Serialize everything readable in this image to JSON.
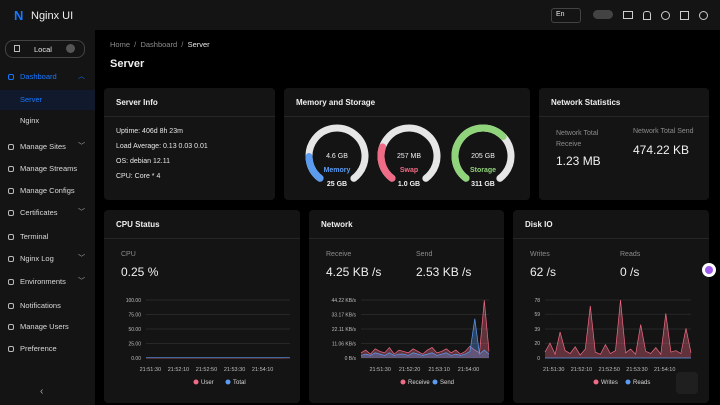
{
  "sidebar": {
    "brand": "Nginx UI",
    "node": "Local",
    "menu": [
      "Dashboard",
      "Server",
      "Nginx",
      "Manage Sites",
      "Manage Streams",
      "Manage Configs",
      "Certificates",
      "Terminal",
      "Nginx Log",
      "Environments",
      "Notifications",
      "Manage Users",
      "Preference"
    ]
  },
  "topbar": {
    "language": "En"
  },
  "breadcrumb": [
    "Home",
    "Dashboard",
    "Server"
  ],
  "page_title": "Server",
  "server_info": {
    "title": "Server Info",
    "lines": [
      "Uptime: 406d 8h 23m",
      "Load Average: 0.13 0.03 0.01",
      "OS: debian 12.11",
      "CPU: Core * 4"
    ]
  },
  "memory_storage": {
    "title": "Memory and Storage",
    "gauges": [
      {
        "name": "Memory",
        "used": "4.6 GB",
        "total": "25 GB",
        "percent": 18,
        "color": "#5b9bf0"
      },
      {
        "name": "Swap",
        "used": "257 MB",
        "total": "1.0 GB",
        "percent": 25,
        "color": "#f06b85"
      },
      {
        "name": "Storage",
        "used": "205 GB",
        "total": "311 GB",
        "percent": 66,
        "color": "#8fd47a"
      }
    ]
  },
  "network_statistics": {
    "title": "Network Statistics",
    "items": [
      {
        "label": "Network Total Receive",
        "value": "1.23 MB"
      },
      {
        "label": "Network Total Send",
        "value": "474.22 KB"
      }
    ]
  },
  "cpu_status": {
    "title": "CPU Status",
    "stats": [
      {
        "label": "CPU",
        "value": "0.25 %"
      }
    ],
    "chart": {
      "ylim": [
        0,
        100
      ],
      "yticks": [
        {
          "value": 0,
          "label": "0.00"
        },
        {
          "value": 25,
          "label": "25.00"
        },
        {
          "value": 50,
          "label": "50.00"
        },
        {
          "value": 75,
          "label": "75.00"
        },
        {
          "value": 100,
          "label": "100.00"
        }
      ],
      "x_labels": [
        "21:51:30",
        "21:52:10",
        "21:52:50",
        "21:53:30",
        "21:54:10"
      ],
      "series": [
        {
          "name": "User",
          "color": "#f06b85",
          "values": [
            0.2,
            0.3,
            0.2,
            0.25,
            0.3,
            0.2,
            0.25,
            0.2,
            0.3,
            0.25,
            0.2,
            0.3,
            0.2,
            0.25,
            0.2,
            0.3,
            0.25,
            0.2,
            0.25,
            0.3
          ]
        },
        {
          "name": "Total",
          "color": "#5b9bf0",
          "values": [
            0.5,
            0.6,
            0.5,
            0.55,
            0.6,
            0.5,
            0.5,
            0.6,
            0.55,
            0.5,
            0.5,
            0.6,
            0.5,
            0.55,
            0.5,
            0.6,
            0.5,
            0.5,
            0.55,
            0.6
          ]
        }
      ]
    }
  },
  "network": {
    "title": "Network",
    "stats": [
      {
        "label": "Receive",
        "value": "4.25 KB /s"
      },
      {
        "label": "Send",
        "value": "2.53 KB /s"
      }
    ],
    "chart": {
      "ylim": [
        0,
        44.22
      ],
      "yticks": [
        {
          "value": 0,
          "label": "0 B/s"
        },
        {
          "value": 11.06,
          "label": "11.06 KB/s"
        },
        {
          "value": 22.11,
          "label": "22.11 KB/s"
        },
        {
          "value": 33.17,
          "label": "33.17 KB/s"
        },
        {
          "value": 44.22,
          "label": "44.22 KB/s"
        }
      ],
      "x_labels": [
        "21:51:30",
        "21:52:20",
        "21:53:10",
        "21:54:00"
      ],
      "series": [
        {
          "name": "Receive",
          "color": "#f06b85",
          "values": [
            4,
            6,
            3,
            7,
            5,
            4,
            8,
            3,
            6,
            5,
            4,
            7,
            5,
            3,
            6,
            8,
            4,
            5,
            7,
            4,
            6,
            3,
            5,
            9,
            6,
            4,
            44,
            5
          ]
        },
        {
          "name": "Send",
          "color": "#5b9bf0",
          "values": [
            2,
            3,
            2,
            4,
            3,
            2,
            4,
            2,
            3,
            3,
            2,
            4,
            3,
            2,
            3,
            4,
            2,
            3,
            4,
            2,
            3,
            2,
            3,
            5,
            30,
            3,
            6,
            3
          ]
        }
      ]
    }
  },
  "disk_io": {
    "title": "Disk IO",
    "stats": [
      {
        "label": "Writes",
        "value": "62 /s"
      },
      {
        "label": "Reads",
        "value": "0 /s"
      }
    ],
    "chart": {
      "ylim": [
        0,
        78
      ],
      "yticks": [
        0,
        20,
        39,
        59,
        78
      ],
      "x_labels": [
        "21:51:30",
        "21:52:10",
        "21:52:50",
        "21:53:30",
        "21:54:10"
      ],
      "series": [
        {
          "name": "Writes",
          "color": "#f06b85",
          "values": [
            8,
            20,
            5,
            35,
            10,
            6,
            15,
            4,
            12,
            70,
            8,
            5,
            18,
            6,
            10,
            78,
            7,
            12,
            5,
            45,
            9,
            6,
            14,
            5,
            60,
            8,
            10,
            6,
            40,
            7
          ]
        },
        {
          "name": "Reads",
          "color": "#5b9bf0",
          "values": [
            0,
            0,
            0,
            0,
            0,
            0,
            0,
            0,
            0,
            0,
            0,
            0,
            0,
            0,
            0,
            0,
            0,
            0,
            0,
            0,
            0,
            0,
            0,
            0,
            0,
            0,
            0,
            0,
            0,
            0
          ]
        }
      ]
    }
  }
}
